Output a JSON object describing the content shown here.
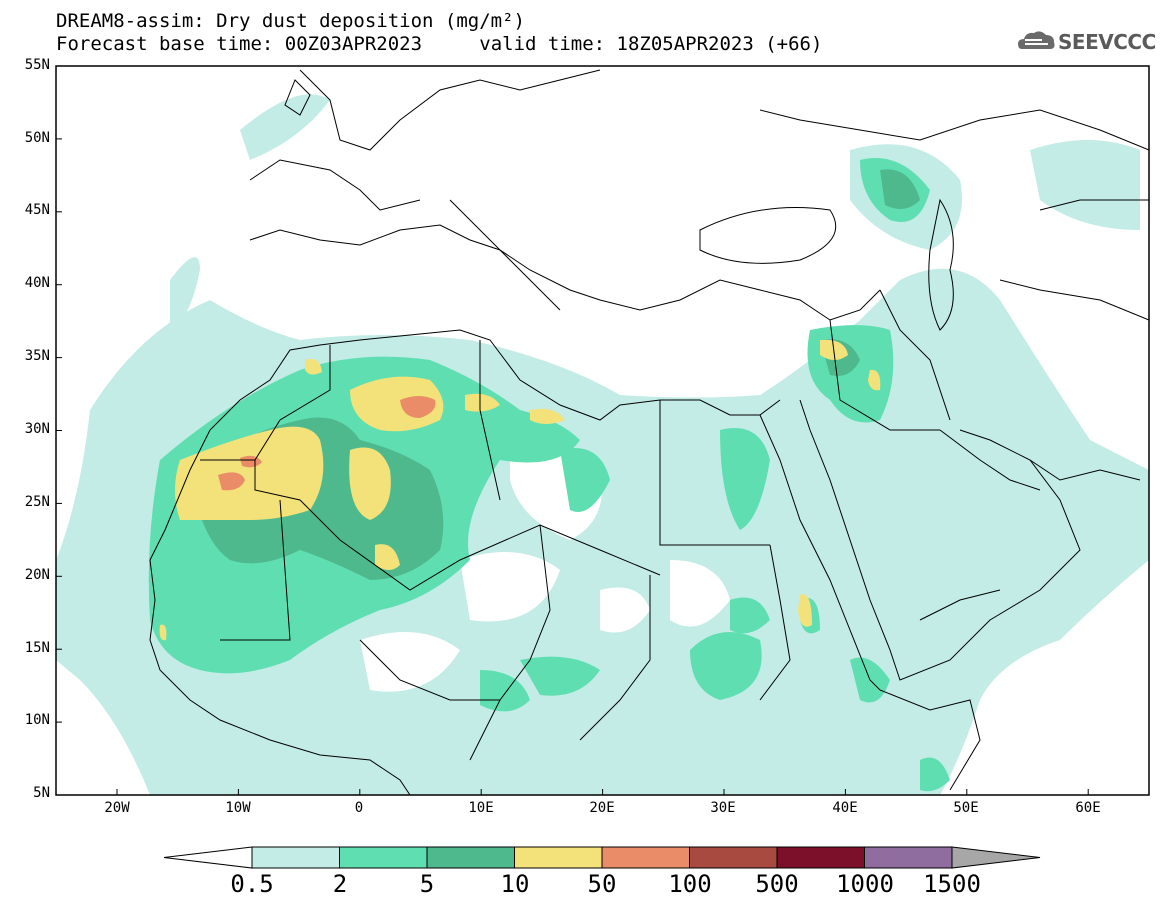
{
  "header": {
    "title": "DREAM8-assim: Dry dust deposition (mg/m²)",
    "base_time_label": "Forecast base time: 00Z03APR2023",
    "valid_time_label": "valid time: 18Z05APR2023 (+66)"
  },
  "logo": {
    "text": "SEEVCCC",
    "icon": "cloud-icon"
  },
  "map": {
    "lat_labels": [
      "55N",
      "50N",
      "45N",
      "40N",
      "35N",
      "30N",
      "25N",
      "20N",
      "15N",
      "10N",
      "5N"
    ],
    "lon_labels": [
      "20W",
      "10W",
      "0",
      "10E",
      "20E",
      "30E",
      "40E",
      "50E",
      "60E"
    ]
  },
  "colorbar": {
    "labels": [
      "0.5",
      "2",
      "5",
      "10",
      "50",
      "100",
      "500",
      "1000",
      "1500"
    ],
    "colors": [
      "#c3ece6",
      "#5fdfb1",
      "#4fb98e",
      "#f3e27a",
      "#e98c67",
      "#a84a3f",
      "#7c0f2a",
      "#8f6d9e"
    ],
    "under_color": "#ffffff",
    "over_color": "#a7a7a7"
  },
  "colors": {
    "level_0_5": "#c3ece6",
    "level_2": "#5fdfb1",
    "level_5": "#4fb98e",
    "level_10": "#f3e27a",
    "level_50": "#e98c67"
  }
}
